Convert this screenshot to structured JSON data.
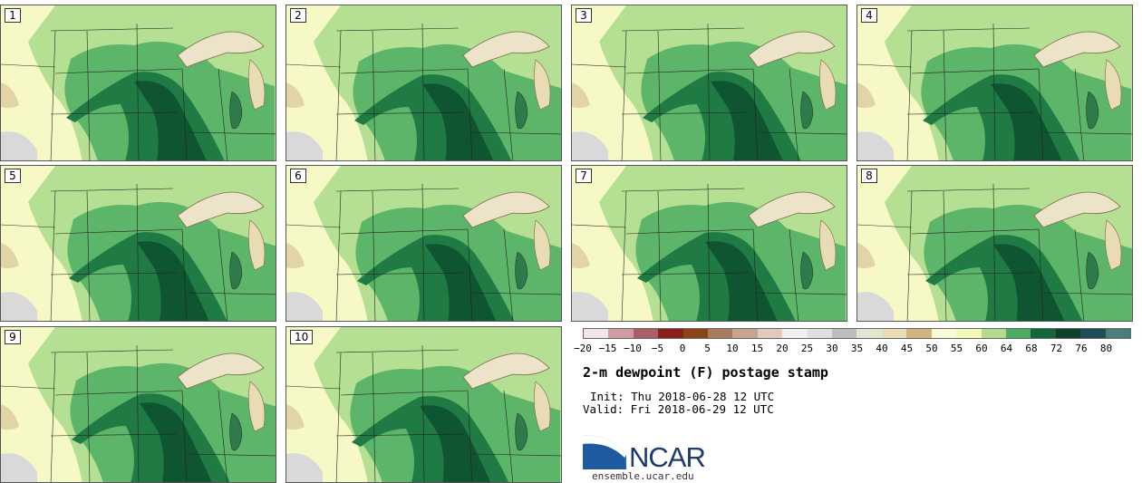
{
  "panels": [
    "1",
    "2",
    "3",
    "4",
    "5",
    "6",
    "7",
    "8",
    "9",
    "10"
  ],
  "colorbar": {
    "colors": [
      "#f3e4ea",
      "#cf9ba5",
      "#a95f65",
      "#8e1c1c",
      "#8a4515",
      "#aa7a5e",
      "#c6a28f",
      "#dfcabd",
      "#efefef",
      "#dedede",
      "#bdbdbd",
      "#e4e4d3",
      "#e9dcb5",
      "#d0b57f",
      "#fbfbd8",
      "#f3f8b7",
      "#b1dc8e",
      "#4dac5f",
      "#11673a",
      "#0e3f2a",
      "#1f4c58",
      "#4a7e7a"
    ],
    "ticks": [
      "−20",
      "−15",
      "−10",
      "−5",
      "0",
      "5",
      "10",
      "15",
      "20",
      "25",
      "30",
      "35",
      "40",
      "45",
      "50",
      "55",
      "60",
      "64",
      "68",
      "72",
      "76",
      "80"
    ]
  },
  "title": "2-m dewpoint (F) postage stamp",
  "init": "Init: Thu 2018-06-28 12 UTC",
  "valid": "Valid: Fri 2018-06-29 12 UTC",
  "logo": {
    "text": "NCAR",
    "site": "ensemble.ucar.edu"
  },
  "colors": {
    "lake": "#ece3c8",
    "lake_edge": "#7a6a4a",
    "border": "#222222"
  }
}
